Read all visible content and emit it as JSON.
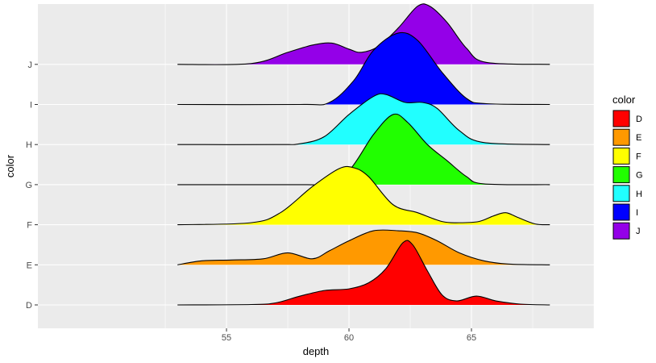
{
  "chart_data": {
    "type": "ridgeline",
    "xlabel": "depth",
    "ylabel": "color",
    "xlim": [
      47.3,
      70.0
    ],
    "x_ticks": [
      55,
      60,
      65
    ],
    "grid": true,
    "legend_position": "right",
    "legend_title": "color",
    "categories": [
      "D",
      "E",
      "F",
      "G",
      "H",
      "I",
      "J"
    ],
    "series": [
      {
        "name": "D",
        "color": "#FF0000",
        "x_range": [
          53.0,
          68.2
        ],
        "points": [
          [
            53.0,
            0
          ],
          [
            56.0,
            0.01
          ],
          [
            57.0,
            0.05
          ],
          [
            58.0,
            0.22
          ],
          [
            59.0,
            0.36
          ],
          [
            60.0,
            0.4
          ],
          [
            60.8,
            0.55
          ],
          [
            61.5,
            0.9
          ],
          [
            62.2,
            1.55
          ],
          [
            62.6,
            1.5
          ],
          [
            63.2,
            0.85
          ],
          [
            63.8,
            0.25
          ],
          [
            64.4,
            0.1
          ],
          [
            65.2,
            0.22
          ],
          [
            66.0,
            0.1
          ],
          [
            67.0,
            0.02
          ],
          [
            68.2,
            0
          ]
        ]
      },
      {
        "name": "E",
        "color": "#FF9900",
        "x_range": [
          53.0,
          68.2
        ],
        "points": [
          [
            53.0,
            0
          ],
          [
            54.0,
            0.1
          ],
          [
            55.2,
            0.12
          ],
          [
            56.5,
            0.15
          ],
          [
            57.5,
            0.3
          ],
          [
            58.5,
            0.15
          ],
          [
            59.2,
            0.35
          ],
          [
            60.0,
            0.6
          ],
          [
            61.0,
            0.85
          ],
          [
            62.0,
            0.85
          ],
          [
            62.8,
            0.8
          ],
          [
            63.6,
            0.6
          ],
          [
            64.5,
            0.3
          ],
          [
            65.5,
            0.1
          ],
          [
            66.5,
            0.02
          ],
          [
            68.2,
            0
          ]
        ]
      },
      {
        "name": "F",
        "color": "#FFFF00",
        "x_range": [
          53.0,
          68.2
        ],
        "points": [
          [
            53.0,
            0
          ],
          [
            56.0,
            0.05
          ],
          [
            57.2,
            0.3
          ],
          [
            58.5,
            0.95
          ],
          [
            59.6,
            1.4
          ],
          [
            60.2,
            1.42
          ],
          [
            60.8,
            1.2
          ],
          [
            61.8,
            0.5
          ],
          [
            62.8,
            0.3
          ],
          [
            63.8,
            0.08
          ],
          [
            64.5,
            0.05
          ],
          [
            65.3,
            0.08
          ],
          [
            65.9,
            0.22
          ],
          [
            66.4,
            0.3
          ],
          [
            66.9,
            0.18
          ],
          [
            67.6,
            0.02
          ],
          [
            68.2,
            0
          ]
        ]
      },
      {
        "name": "G",
        "color": "#21FF00",
        "x_range": [
          53.0,
          68.2
        ],
        "points": [
          [
            53.0,
            0
          ],
          [
            58.0,
            0
          ],
          [
            59.0,
            0.02
          ],
          [
            60.0,
            0.35
          ],
          [
            61.0,
            1.25
          ],
          [
            61.8,
            1.75
          ],
          [
            62.4,
            1.55
          ],
          [
            63.2,
            1.0
          ],
          [
            64.0,
            0.6
          ],
          [
            64.8,
            0.2
          ],
          [
            65.5,
            0.02
          ],
          [
            68.2,
            0
          ]
        ]
      },
      {
        "name": "H",
        "color": "#21FFFF",
        "x_range": [
          53.0,
          68.2
        ],
        "points": [
          [
            53.0,
            0
          ],
          [
            57.0,
            0
          ],
          [
            58.0,
            0.02
          ],
          [
            59.0,
            0.2
          ],
          [
            60.0,
            0.75
          ],
          [
            61.0,
            1.2
          ],
          [
            61.5,
            1.25
          ],
          [
            62.3,
            1.05
          ],
          [
            63.0,
            1.05
          ],
          [
            63.6,
            0.9
          ],
          [
            64.5,
            0.35
          ],
          [
            65.5,
            0.05
          ],
          [
            68.2,
            0
          ]
        ]
      },
      {
        "name": "I",
        "color": "#0000FF",
        "x_range": [
          53.0,
          68.2
        ],
        "points": [
          [
            53.0,
            0
          ],
          [
            58.0,
            0
          ],
          [
            59.2,
            0.05
          ],
          [
            60.2,
            0.6
          ],
          [
            61.0,
            1.35
          ],
          [
            62.0,
            1.78
          ],
          [
            62.8,
            1.6
          ],
          [
            63.8,
            0.8
          ],
          [
            64.8,
            0.15
          ],
          [
            65.6,
            0.02
          ],
          [
            68.2,
            0
          ]
        ]
      },
      {
        "name": "J",
        "color": "#9400E8",
        "x_range": [
          53.0,
          68.2
        ],
        "points": [
          [
            53.0,
            0
          ],
          [
            56.0,
            0.02
          ],
          [
            57.5,
            0.3
          ],
          [
            58.5,
            0.48
          ],
          [
            59.3,
            0.53
          ],
          [
            60.0,
            0.38
          ],
          [
            60.5,
            0.3
          ],
          [
            61.2,
            0.45
          ],
          [
            62.0,
            0.9
          ],
          [
            62.8,
            1.45
          ],
          [
            63.3,
            1.45
          ],
          [
            64.0,
            1.05
          ],
          [
            64.8,
            0.4
          ],
          [
            65.6,
            0.05
          ],
          [
            68.2,
            0
          ]
        ]
      }
    ]
  }
}
